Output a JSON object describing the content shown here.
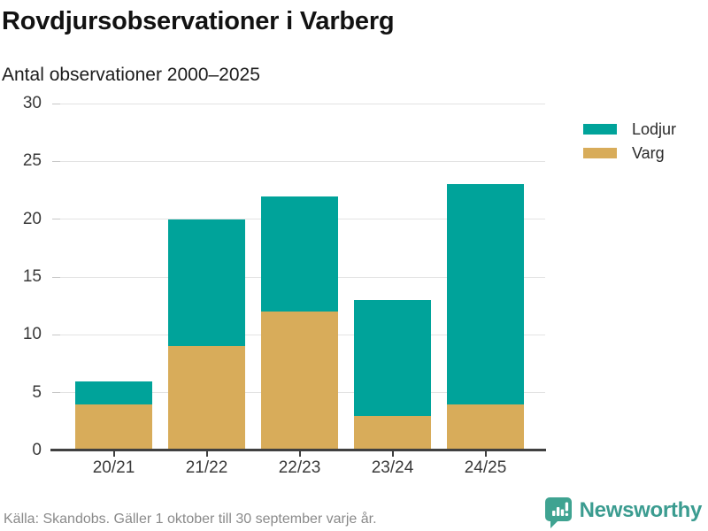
{
  "header": {
    "title": "Rovdjursobservationer i Varberg",
    "subtitle": "Antal observationer 2000–2025"
  },
  "legend": [
    {
      "label": "Lodjur",
      "color": "#00a39a"
    },
    {
      "label": "Varg",
      "color": "#d8ac5a"
    }
  ],
  "chart_data": {
    "type": "bar",
    "stacked": true,
    "title": "Rovdjursobservationer i Varberg",
    "subtitle": "Antal observationer 2000–2025",
    "categories": [
      "20/21",
      "21/22",
      "22/23",
      "23/24",
      "24/25"
    ],
    "series": [
      {
        "name": "Varg",
        "color": "#d8ac5a",
        "values": [
          4,
          9,
          12,
          3,
          4
        ]
      },
      {
        "name": "Lodjur",
        "color": "#00a39a",
        "values": [
          2,
          11,
          10,
          10,
          19
        ]
      }
    ],
    "totals": [
      6,
      20,
      22,
      13,
      23
    ],
    "xlabel": "",
    "ylabel": "",
    "ylim": [
      0,
      30
    ],
    "yticks": [
      0,
      5,
      10,
      15,
      20,
      25,
      30
    ],
    "grid": true,
    "legend_position": "top-right"
  },
  "footer": {
    "source": "Källa: Skandobs. Gäller 1 oktober till 30 september varje år.",
    "brand": "Newsworthy",
    "brand_icon": "speech-bubble-bar-chart-icon",
    "brand_color": "#3b9c90"
  },
  "colors": {
    "teal": "#00a39a",
    "gold": "#d8ac5a",
    "grid": "#e3e3e3",
    "axis": "#404040",
    "text": "#1c1c1c",
    "muted": "#8a8a8a"
  }
}
